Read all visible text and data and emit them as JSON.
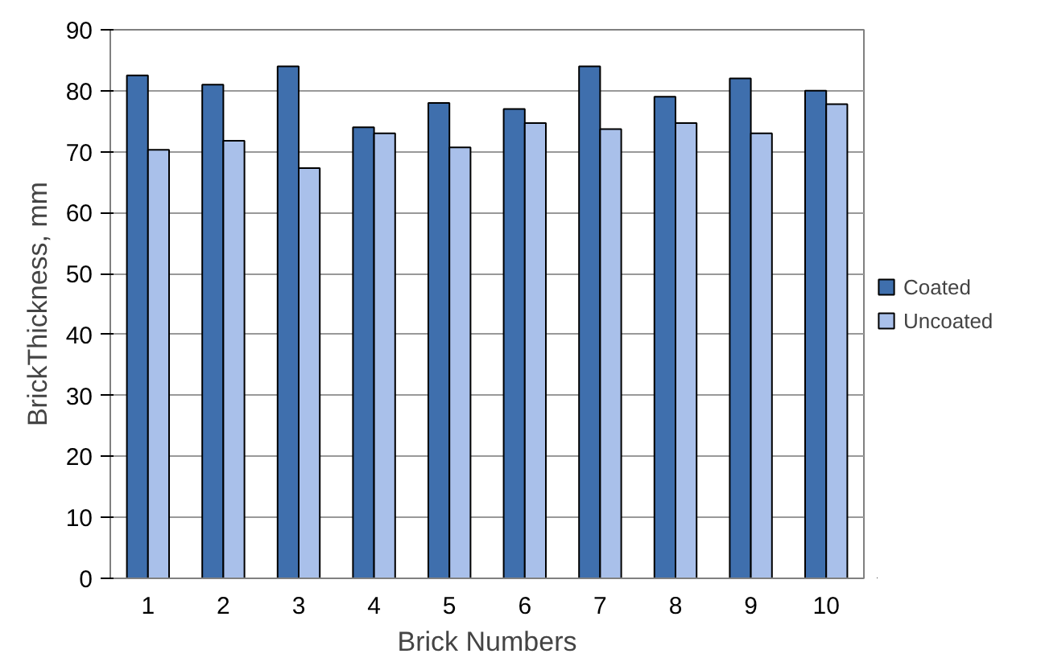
{
  "chart_data": {
    "type": "bar",
    "xlabel": "Brick Numbers",
    "ylabel": "BrickThickness, mm",
    "categories": [
      "1",
      "2",
      "3",
      "4",
      "5",
      "6",
      "7",
      "8",
      "9",
      "10"
    ],
    "series": [
      {
        "name": "Coated",
        "color": "#3f6fad",
        "values": [
          82.5,
          81,
          84,
          74,
          78,
          77,
          84,
          79,
          82,
          80
        ]
      },
      {
        "name": "Uncoated",
        "color": "#a9c0ea",
        "values": [
          70.3,
          71.8,
          67.3,
          73,
          70.7,
          74.7,
          73.7,
          74.7,
          73,
          77.8
        ]
      }
    ],
    "ylim": [
      0,
      90
    ],
    "yticks": [
      0,
      10,
      20,
      30,
      40,
      50,
      60,
      70,
      80,
      90
    ],
    "grid": "y",
    "legend": "right"
  }
}
